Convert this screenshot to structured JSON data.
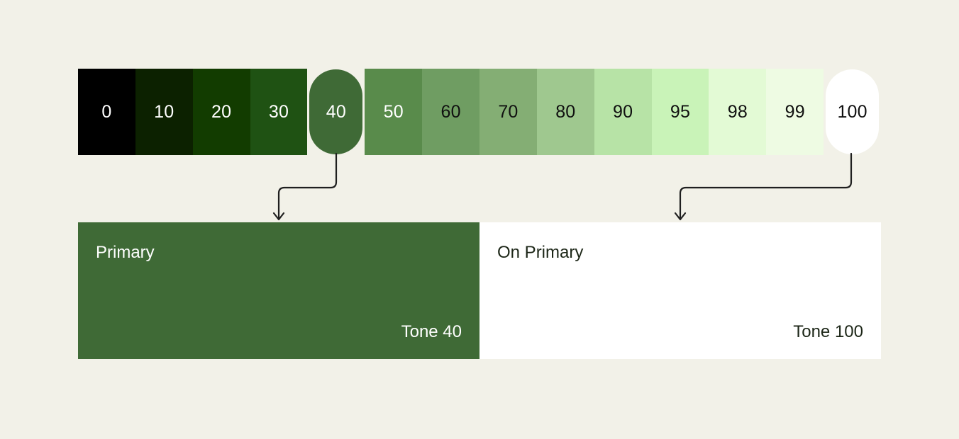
{
  "background_color": "#F2F1E8",
  "connector_color": "#1F1F1F",
  "palette_strip": {
    "description": "tonal-palette",
    "tones": [
      {
        "label": "0",
        "color": "#000000",
        "text_color": "#FFFFFF",
        "highlighted": false
      },
      {
        "label": "10",
        "color": "#0C2100",
        "text_color": "#FFFFFF",
        "highlighted": false
      },
      {
        "label": "20",
        "color": "#123C00",
        "text_color": "#FFFFFF",
        "highlighted": false
      },
      {
        "label": "30",
        "color": "#1F5213",
        "text_color": "#FFFFFF",
        "highlighted": false
      },
      {
        "label": "40",
        "color": "#3F6A36",
        "text_color": "#FFFFFF",
        "highlighted": true
      },
      {
        "label": "50",
        "color": "#598B4B",
        "text_color": "#FFFFFF",
        "highlighted": false
      },
      {
        "label": "60",
        "color": "#6F9D62",
        "text_color": "#101010",
        "highlighted": false
      },
      {
        "label": "70",
        "color": "#84AE74",
        "text_color": "#101010",
        "highlighted": false
      },
      {
        "label": "80",
        "color": "#9FC88F",
        "text_color": "#101010",
        "highlighted": false
      },
      {
        "label": "90",
        "color": "#B7E3A6",
        "text_color": "#101010",
        "highlighted": false
      },
      {
        "label": "95",
        "color": "#C9F3B8",
        "text_color": "#101010",
        "highlighted": false
      },
      {
        "label": "98",
        "color": "#E3FAD5",
        "text_color": "#101010",
        "highlighted": false
      },
      {
        "label": "99",
        "color": "#EEFBE3",
        "text_color": "#101010",
        "highlighted": false
      },
      {
        "label": "100",
        "color": "#FFFFFF",
        "text_color": "#101010",
        "highlighted": true
      }
    ]
  },
  "cards": [
    {
      "role": "Primary",
      "tone_label": "Tone 40",
      "color": "#3F6A36",
      "text_color": "#FFFFFF"
    },
    {
      "role": "On Primary",
      "tone_label": "Tone 100",
      "color": "#FFFFFF",
      "text_color": "#1C2617"
    }
  ]
}
